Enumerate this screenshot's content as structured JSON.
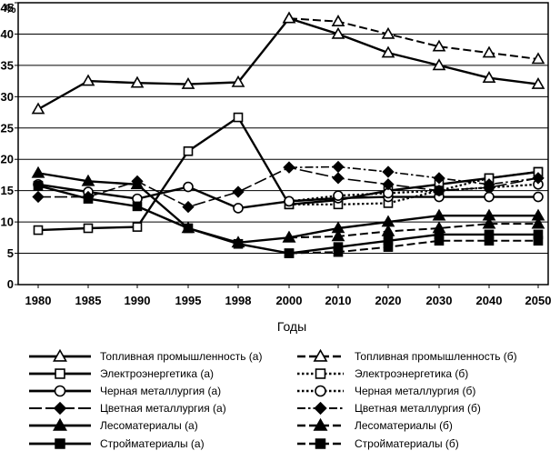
{
  "chart_data": {
    "type": "line",
    "title": "",
    "xlabel": "Годы",
    "ylabel": "%",
    "ylim": [
      0,
      45
    ],
    "yticks": [
      0,
      5,
      10,
      15,
      20,
      25,
      30,
      35,
      40,
      45
    ],
    "ytick_labels": [
      "0",
      "5",
      "10",
      "15",
      "20",
      "25",
      "30",
      "35",
      "40",
      "45"
    ],
    "categories": [
      "1980",
      "1985",
      "1990",
      "1995",
      "1998",
      "2000",
      "2010",
      "2020",
      "2030",
      "2040",
      "2050"
    ],
    "grid": "horizontal",
    "legend_position": "bottom",
    "series": [
      {
        "name": "Топливная промышленность (а)",
        "marker": "triangle-open",
        "dash": "solid",
        "values": [
          28,
          32.5,
          32.2,
          32,
          32.3,
          42.5,
          40,
          37,
          35,
          33,
          32
        ]
      },
      {
        "name": "Топливная промышленность (б)",
        "marker": "triangle-open",
        "dash": "dashed",
        "values": [
          null,
          null,
          null,
          null,
          null,
          42.5,
          42,
          40,
          38,
          37,
          36
        ]
      },
      {
        "name": "Электроэнергетика (а)",
        "marker": "square-open",
        "dash": "solid",
        "values": [
          8.7,
          9,
          9.2,
          21.3,
          26.7,
          12.8,
          13.5,
          15,
          16,
          17,
          18
        ]
      },
      {
        "name": "Электроэнергетика (б)",
        "marker": "square-open",
        "dash": "dotted",
        "values": [
          null,
          null,
          null,
          null,
          null,
          12.8,
          12.8,
          13,
          15,
          17,
          18
        ]
      },
      {
        "name": "Черная металлургия (а)",
        "marker": "circle-open",
        "dash": "solid",
        "values": [
          16,
          14.8,
          13.7,
          15.6,
          12.2,
          13.3,
          13.8,
          14,
          14,
          14,
          14
        ]
      },
      {
        "name": "Черная металлургия (б)",
        "marker": "circle-open",
        "dash": "dotted",
        "values": [
          null,
          null,
          null,
          null,
          null,
          13.3,
          14.2,
          14.6,
          15,
          15.5,
          16
        ]
      },
      {
        "name": "Цветная металлургия (а)",
        "marker": "diamond-filled",
        "dash": "longdash",
        "values": [
          14,
          14,
          16.5,
          12.4,
          14.8,
          18.7,
          17,
          16,
          15,
          15.5,
          17
        ]
      },
      {
        "name": "Цветная металлургия (б)",
        "marker": "diamond-filled",
        "dash": "dashdot",
        "values": [
          null,
          null,
          null,
          null,
          null,
          18.7,
          18.8,
          18,
          17,
          16,
          17
        ]
      },
      {
        "name": "Лесоматериалы (а)",
        "marker": "triangle-filled",
        "dash": "solid",
        "values": [
          17.8,
          16.5,
          16,
          9,
          6.7,
          7.5,
          9,
          10,
          11,
          11,
          11
        ]
      },
      {
        "name": "Лесоматериалы (б)",
        "marker": "triangle-filled",
        "dash": "dashed",
        "values": [
          null,
          null,
          null,
          null,
          null,
          7.5,
          7.7,
          8.5,
          9,
          9.7,
          9.7
        ]
      },
      {
        "name": "Стройматериалы (а)",
        "marker": "square-filled",
        "dash": "solid",
        "values": [
          15.8,
          13.7,
          12.5,
          9,
          6.5,
          5,
          6,
          7,
          8,
          8,
          8
        ]
      },
      {
        "name": "Стройматериалы (б)",
        "marker": "square-filled",
        "dash": "dashed",
        "values": [
          null,
          null,
          null,
          null,
          null,
          5,
          5.2,
          6,
          7,
          7,
          7
        ]
      }
    ]
  }
}
